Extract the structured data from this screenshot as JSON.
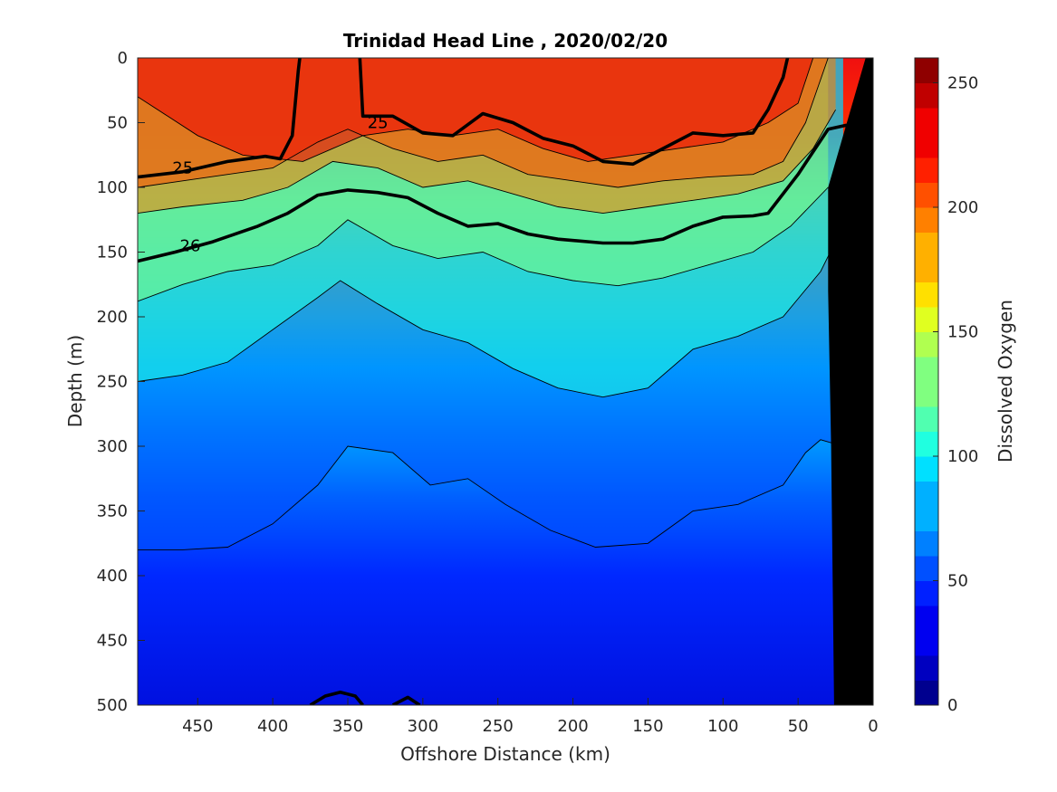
{
  "chart_data": {
    "type": "heatmap",
    "subtype": "filled-contour-section",
    "title": "Trinidad Head Line , 2020/02/20",
    "xlabel": "Offshore Distance (km)",
    "ylabel": "Depth (m)",
    "colorbar_label": "Dissolved Oxygen",
    "xlim": [
      490,
      0
    ],
    "ylim": [
      0,
      500
    ],
    "x_reversed": true,
    "y_reversed": true,
    "xticks": [
      "450",
      "400",
      "350",
      "300",
      "250",
      "200",
      "150",
      "100",
      "50",
      "0"
    ],
    "xtick_values": [
      450,
      400,
      350,
      300,
      250,
      200,
      150,
      100,
      50,
      0
    ],
    "yticks": [
      "0",
      "50",
      "100",
      "150",
      "200",
      "250",
      "300",
      "350",
      "400",
      "450",
      "500"
    ],
    "ytick_values": [
      0,
      50,
      100,
      150,
      200,
      250,
      300,
      350,
      400,
      450,
      500
    ],
    "colorbar_ticks": [
      "0",
      "50",
      "100",
      "150",
      "200",
      "250"
    ],
    "colorbar_tick_values": [
      0,
      50,
      100,
      150,
      200,
      250
    ],
    "clim": [
      0,
      260
    ],
    "colormap": "jet",
    "colormap_levels": 26,
    "colormap_colors": [
      "#00008f",
      "#0000c0",
      "#0000f0",
      "#0020ff",
      "#0050ff",
      "#0080ff",
      "#00b0ff",
      "#00e0ff",
      "#20ffe0",
      "#50ffb0",
      "#80ff80",
      "#b0ff50",
      "#e0ff20",
      "#ffe000",
      "#ffb000",
      "#ff8000",
      "#ff5000",
      "#ff2000",
      "#f00000",
      "#c00000",
      "#8f0000"
    ],
    "oxygen_isolines": [
      {
        "value": 225,
        "points": [
          [
            490,
            30
          ],
          [
            470,
            45
          ],
          [
            450,
            60
          ],
          [
            420,
            75
          ],
          [
            380,
            80
          ],
          [
            360,
            70
          ],
          [
            340,
            60
          ],
          [
            310,
            55
          ],
          [
            280,
            60
          ],
          [
            250,
            55
          ],
          [
            220,
            70
          ],
          [
            190,
            80
          ],
          [
            160,
            75
          ],
          [
            130,
            70
          ],
          [
            100,
            65
          ],
          [
            70,
            50
          ],
          [
            50,
            35
          ],
          [
            40,
            0
          ]
        ]
      },
      {
        "value": 200,
        "points": [
          [
            490,
            100
          ],
          [
            460,
            95
          ],
          [
            430,
            90
          ],
          [
            400,
            85
          ],
          [
            370,
            65
          ],
          [
            350,
            55
          ],
          [
            320,
            70
          ],
          [
            290,
            80
          ],
          [
            260,
            75
          ],
          [
            230,
            90
          ],
          [
            200,
            95
          ],
          [
            170,
            100
          ],
          [
            140,
            95
          ],
          [
            110,
            92
          ],
          [
            80,
            90
          ],
          [
            60,
            80
          ],
          [
            45,
            50
          ],
          [
            30,
            0
          ]
        ]
      },
      {
        "value": 180,
        "points": [
          [
            490,
            120
          ],
          [
            460,
            115
          ],
          [
            420,
            110
          ],
          [
            390,
            100
          ],
          [
            360,
            80
          ],
          [
            330,
            85
          ],
          [
            300,
            100
          ],
          [
            270,
            95
          ],
          [
            240,
            105
          ],
          [
            210,
            115
          ],
          [
            180,
            120
          ],
          [
            150,
            115
          ],
          [
            120,
            110
          ],
          [
            90,
            105
          ],
          [
            60,
            95
          ],
          [
            40,
            70
          ],
          [
            25,
            40
          ]
        ]
      },
      {
        "value": 120,
        "points": [
          [
            490,
            188
          ],
          [
            460,
            175
          ],
          [
            430,
            165
          ],
          [
            400,
            160
          ],
          [
            370,
            145
          ],
          [
            350,
            125
          ],
          [
            320,
            145
          ],
          [
            290,
            155
          ],
          [
            260,
            150
          ],
          [
            230,
            165
          ],
          [
            200,
            172
          ],
          [
            170,
            176
          ],
          [
            140,
            170
          ],
          [
            110,
            160
          ],
          [
            80,
            150
          ],
          [
            55,
            130
          ],
          [
            30,
            100
          ]
        ]
      },
      {
        "value": 100,
        "points": [
          [
            490,
            250
          ],
          [
            460,
            245
          ],
          [
            430,
            235
          ],
          [
            400,
            210
          ],
          [
            370,
            185
          ],
          [
            355,
            172
          ],
          [
            330,
            190
          ],
          [
            300,
            210
          ],
          [
            270,
            220
          ],
          [
            240,
            240
          ],
          [
            210,
            255
          ],
          [
            180,
            262
          ],
          [
            150,
            255
          ],
          [
            120,
            225
          ],
          [
            90,
            215
          ],
          [
            60,
            200
          ],
          [
            35,
            165
          ],
          [
            20,
            130
          ]
        ]
      },
      {
        "value": 50,
        "points": [
          [
            490,
            380
          ],
          [
            460,
            380
          ],
          [
            430,
            378
          ],
          [
            400,
            360
          ],
          [
            370,
            330
          ],
          [
            350,
            300
          ],
          [
            320,
            305
          ],
          [
            295,
            330
          ],
          [
            270,
            325
          ],
          [
            245,
            345
          ],
          [
            215,
            365
          ],
          [
            185,
            378
          ],
          [
            150,
            375
          ],
          [
            120,
            350
          ],
          [
            90,
            345
          ],
          [
            60,
            330
          ],
          [
            45,
            305
          ],
          [
            35,
            295
          ],
          [
            20,
            300
          ]
        ]
      }
    ],
    "density_contours": [
      {
        "label": "25",
        "points": [
          [
            490,
            92
          ],
          [
            460,
            88
          ],
          [
            430,
            80
          ],
          [
            405,
            76
          ],
          [
            395,
            78
          ],
          [
            387,
            60
          ],
          [
            383,
            10
          ],
          [
            382,
            0
          ]
        ],
        "label_at": [
          460,
          85
        ]
      },
      {
        "label": "25",
        "points": [
          [
            342,
            0
          ],
          [
            340,
            45
          ],
          [
            320,
            45
          ],
          [
            300,
            58
          ],
          [
            280,
            60
          ],
          [
            260,
            43
          ],
          [
            240,
            50
          ],
          [
            220,
            62
          ],
          [
            200,
            68
          ],
          [
            180,
            80
          ],
          [
            160,
            82
          ],
          [
            140,
            70
          ],
          [
            120,
            58
          ],
          [
            100,
            60
          ],
          [
            80,
            58
          ],
          [
            70,
            40
          ],
          [
            60,
            15
          ],
          [
            57,
            0
          ]
        ],
        "label_at": [
          330,
          50
        ]
      },
      {
        "label": "26",
        "points": [
          [
            490,
            157
          ],
          [
            465,
            150
          ],
          [
            440,
            142
          ],
          [
            410,
            130
          ],
          [
            390,
            120
          ],
          [
            370,
            106
          ],
          [
            350,
            102
          ],
          [
            330,
            104
          ],
          [
            310,
            108
          ],
          [
            290,
            120
          ],
          [
            270,
            130
          ],
          [
            250,
            128
          ],
          [
            230,
            136
          ],
          [
            210,
            140
          ],
          [
            180,
            143
          ],
          [
            160,
            143
          ],
          [
            140,
            140
          ],
          [
            120,
            130
          ],
          [
            100,
            123
          ],
          [
            80,
            122
          ],
          [
            70,
            120
          ],
          [
            50,
            90
          ],
          [
            30,
            55
          ],
          [
            18,
            52
          ],
          [
            10,
            65
          ]
        ],
        "label_at": [
          455,
          145
        ]
      },
      {
        "label": "",
        "points": [
          [
            375,
            500
          ],
          [
            365,
            493
          ],
          [
            355,
            490
          ],
          [
            345,
            493
          ],
          [
            340,
            500
          ]
        ],
        "label_at": null
      },
      {
        "label": "",
        "points": [
          [
            320,
            500
          ],
          [
            310,
            494
          ],
          [
            302,
            500
          ]
        ],
        "label_at": null
      }
    ],
    "bathymetry_polygon": [
      [
        0,
        0
      ],
      [
        0,
        500
      ],
      [
        26,
        500
      ],
      [
        28,
        300
      ],
      [
        30,
        180
      ],
      [
        30,
        100
      ],
      [
        5,
        0
      ]
    ],
    "bathymetry_color": "#000000"
  }
}
